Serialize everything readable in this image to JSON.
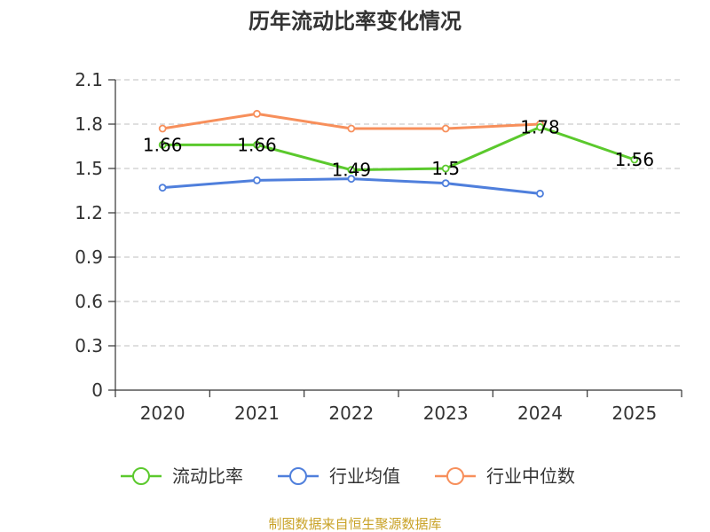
{
  "chart_data": {
    "type": "line",
    "title": "历年流动比率变化情况",
    "categories": [
      "2020",
      "2021",
      "2022",
      "2023",
      "2024",
      "2025"
    ],
    "yticks": [
      "0",
      "0.3",
      "0.6",
      "0.9",
      "1.2",
      "1.5",
      "1.8",
      "2.1"
    ],
    "ylim": [
      0,
      2.1
    ],
    "grid": true,
    "legend_position": "bottom",
    "series": [
      {
        "name": "流动比率",
        "color": "#5bc92d",
        "values": [
          1.66,
          1.66,
          1.49,
          1.5,
          1.78,
          1.56
        ],
        "labels": [
          "1.66",
          "1.66",
          "1.49",
          "1.5",
          "1.78",
          "1.56"
        ]
      },
      {
        "name": "行业均值",
        "color": "#4f7fdc",
        "values": [
          1.37,
          1.42,
          1.43,
          1.4,
          1.33,
          null
        ],
        "labels": []
      },
      {
        "name": "行业中位数",
        "color": "#f78f5b",
        "values": [
          1.77,
          1.87,
          1.77,
          1.77,
          1.8,
          null
        ],
        "labels": []
      }
    ]
  },
  "source": {
    "text": "制图数据来自恒生聚源数据库",
    "color": "#c9a227"
  }
}
